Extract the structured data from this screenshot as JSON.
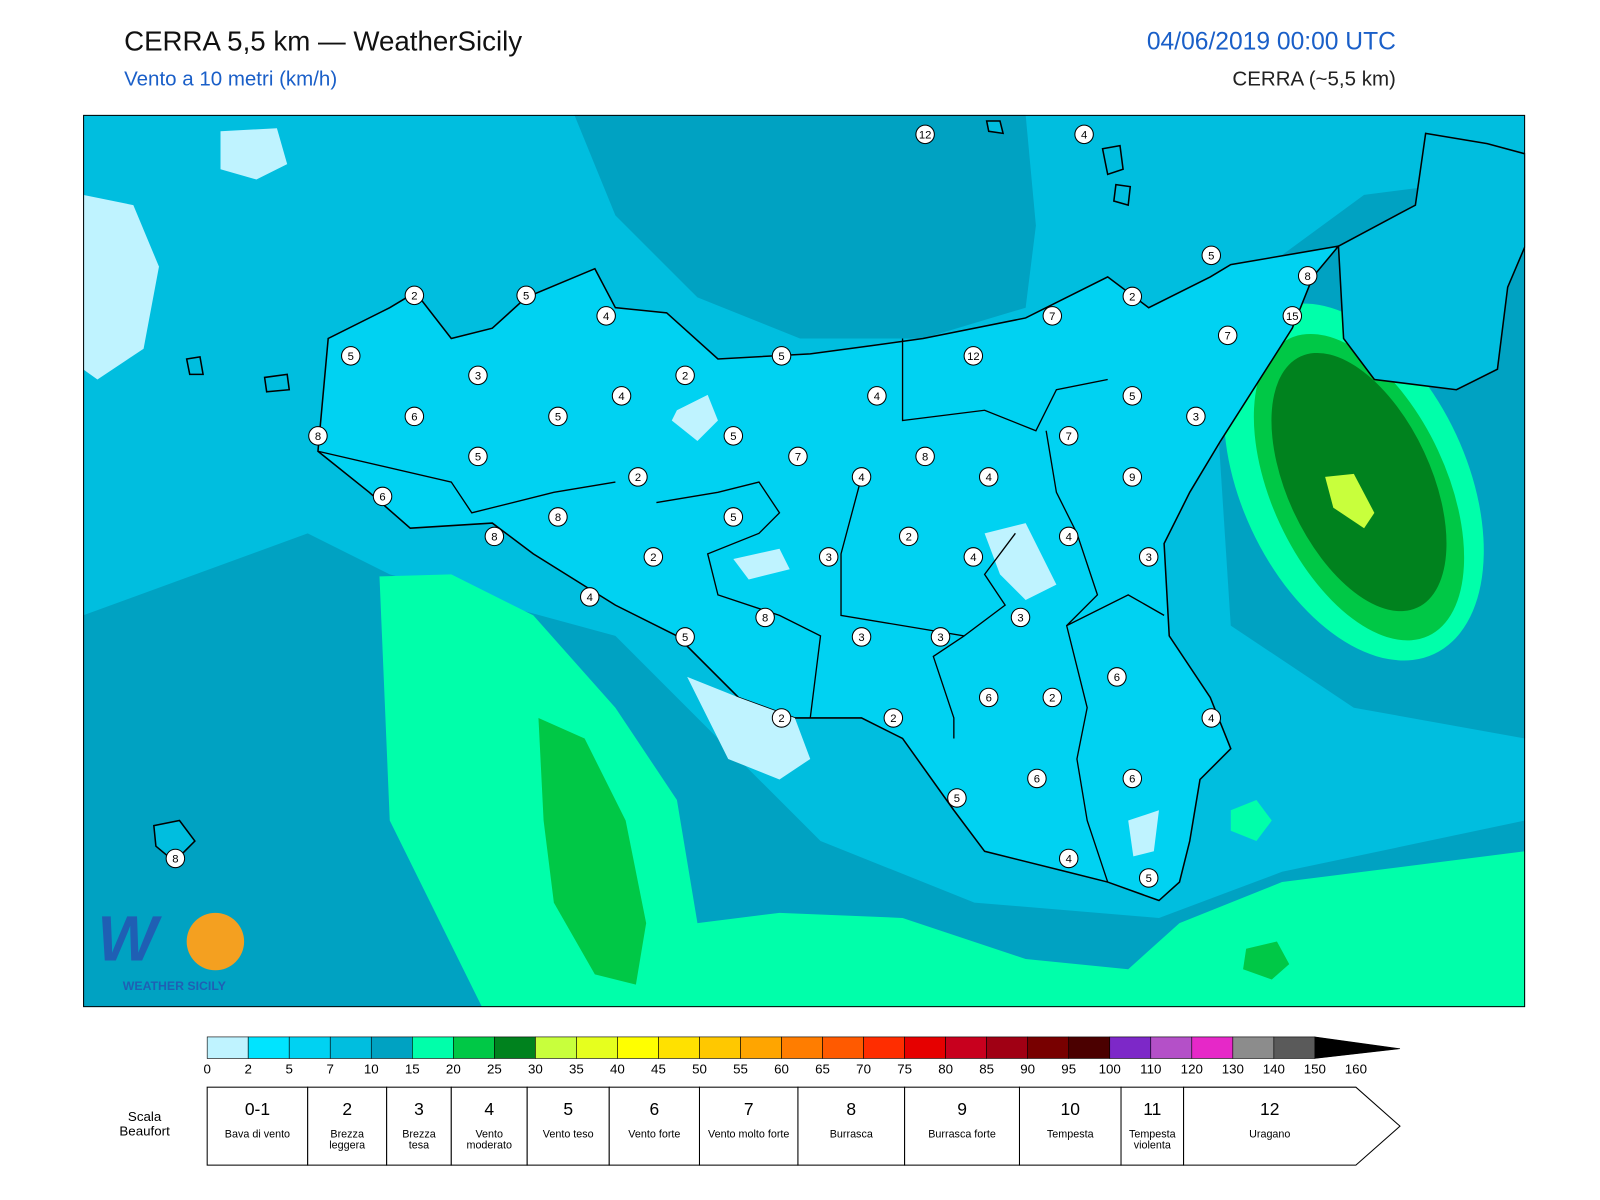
{
  "header": {
    "title": "CERRA 5,5 km — WeatherSicily",
    "subtitle": "Vento a 10 metri (km/h)",
    "date": "04/06/2019 00:00 UTC",
    "model": "CERRA (~5,5 km)"
  },
  "map": {
    "stations": [
      12,
      4,
      5,
      8,
      2,
      7,
      15,
      7,
      2,
      5,
      4,
      5,
      3,
      6,
      8,
      6,
      5,
      5,
      4,
      2,
      5,
      12,
      4,
      5,
      7,
      2,
      4,
      8,
      4,
      7,
      5,
      3,
      9,
      8,
      5,
      8,
      2,
      3,
      2,
      4,
      4,
      3,
      4,
      8,
      5,
      3,
      3,
      3,
      6,
      2,
      6,
      4,
      2,
      2,
      5,
      6,
      6,
      4,
      5,
      8
    ],
    "logo": "WEATHER SICILY"
  },
  "colorbar": {
    "ticks": [
      0,
      2,
      5,
      7,
      10,
      15,
      20,
      25,
      30,
      35,
      40,
      45,
      50,
      55,
      60,
      65,
      70,
      75,
      80,
      85,
      90,
      95,
      100,
      110,
      120,
      130,
      140,
      150,
      160
    ],
    "colors": [
      "#bff3ff",
      "#00e4ff",
      "#00d2f2",
      "#00bedf",
      "#00a2c2",
      "#00ffaa",
      "#00c846",
      "#00821e",
      "#c8ff3c",
      "#e6ff1e",
      "#ffff00",
      "#ffe100",
      "#ffc800",
      "#ffa500",
      "#ff7d00",
      "#ff5a00",
      "#ff2d00",
      "#e60000",
      "#c8001e",
      "#a00014",
      "#780000",
      "#4b0000",
      "#7d28c8",
      "#b450c8",
      "#e628c8",
      "#8c8c8c",
      "#5a5a5a",
      "#000000",
      "#8c4b28",
      "#c87d46"
    ]
  },
  "beaufort": {
    "label": "Scala Beaufort",
    "levels": [
      {
        "number": "0-1",
        "name": "Bava di vento"
      },
      {
        "number": "2",
        "name": "Brezza leggera"
      },
      {
        "number": "3",
        "name": "Brezza tesa"
      },
      {
        "number": "4",
        "name": "Vento moderato"
      },
      {
        "number": "5",
        "name": "Vento teso"
      },
      {
        "number": "6",
        "name": "Vento forte"
      },
      {
        "number": "7",
        "name": "Vento molto forte"
      },
      {
        "number": "8",
        "name": "Burrasca"
      },
      {
        "number": "9",
        "name": "Burrasca forte"
      },
      {
        "number": "10",
        "name": "Tempesta"
      },
      {
        "number": "11",
        "name": "Tempesta violenta"
      },
      {
        "number": "12",
        "name": "Uragano"
      }
    ]
  }
}
